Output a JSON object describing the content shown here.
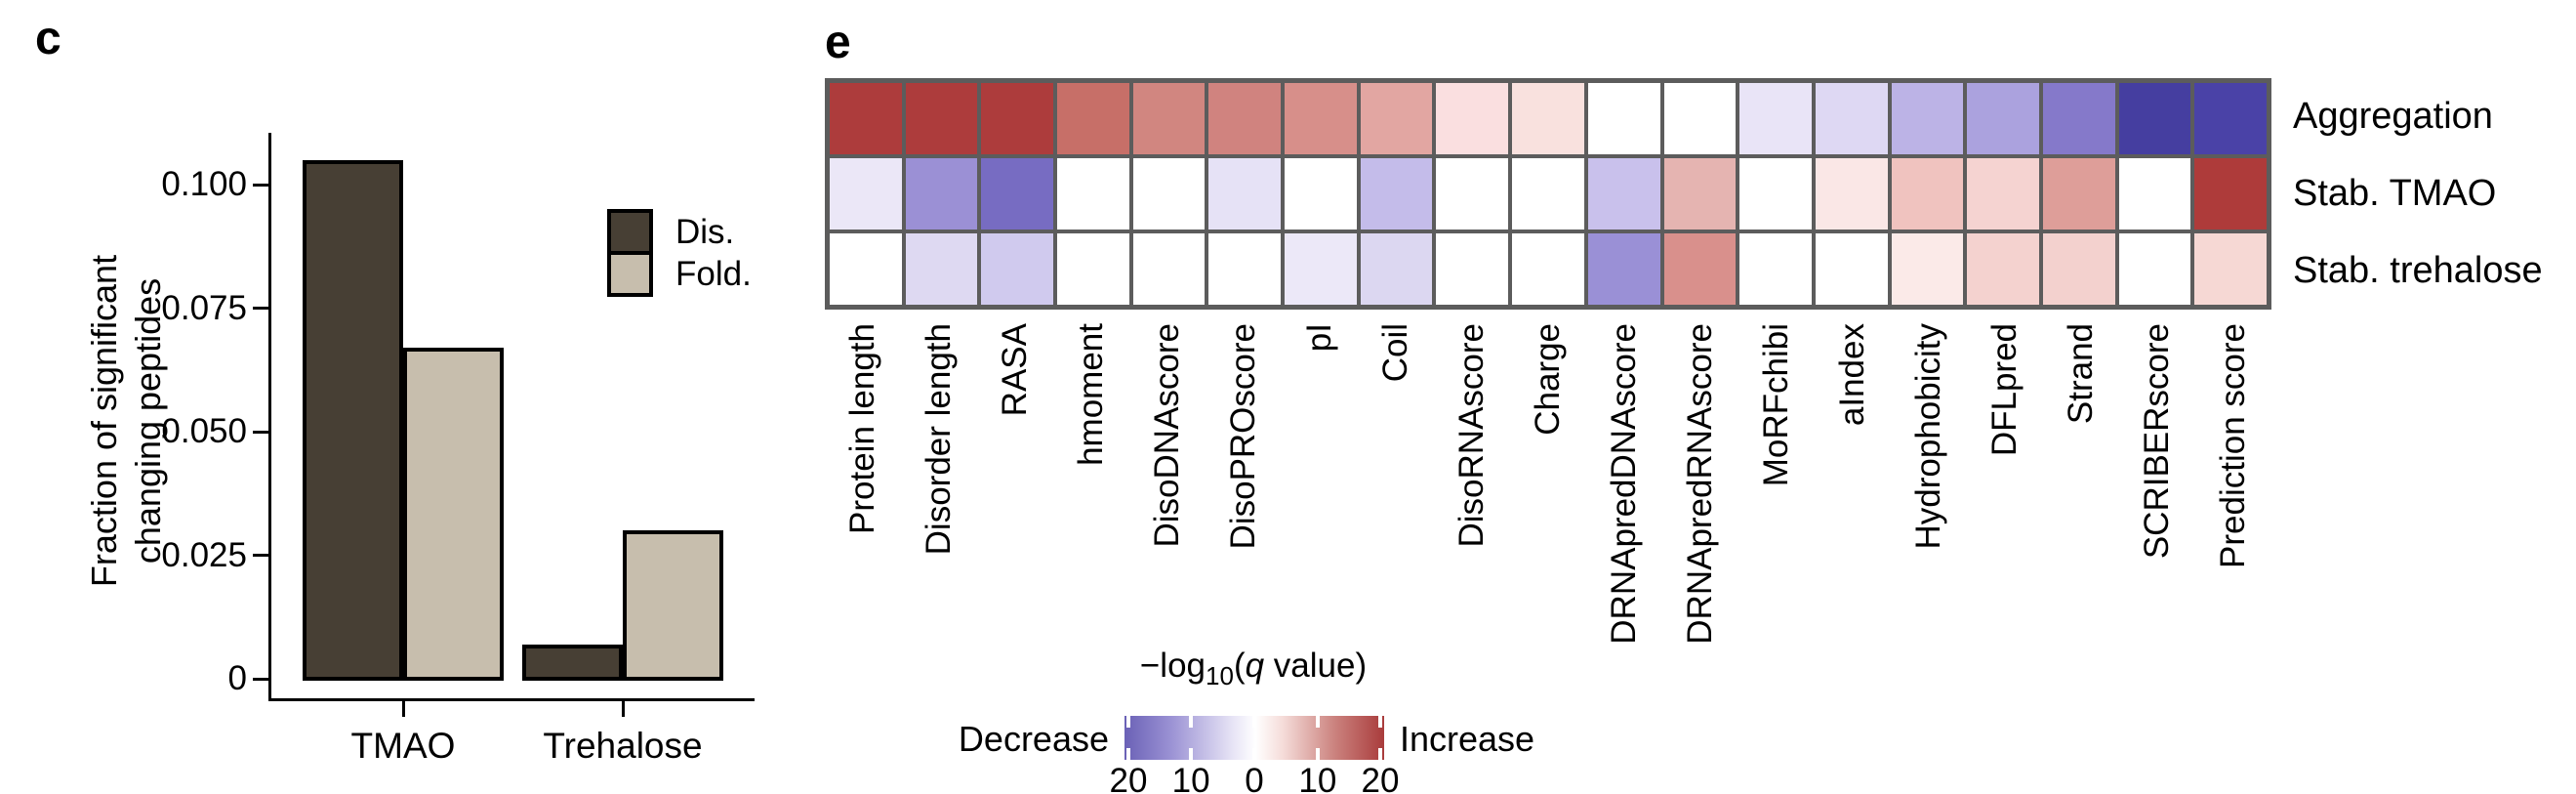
{
  "panels": {
    "c": {
      "label": "c",
      "y_axis": {
        "label_lines": [
          "Fraction of significant",
          "changing peptides"
        ],
        "tick_labels": [
          "0",
          "0.025",
          "0.050",
          "0.075",
          "0.100"
        ]
      }
    },
    "e": {
      "label": "e"
    }
  },
  "chart_data": [
    {
      "type": "bar",
      "title": "",
      "categories": [
        "TMAO",
        "Trehalose"
      ],
      "series": [
        {
          "name": "Dis.",
          "values": [
            0.105,
            0.007
          ],
          "color": "#473f34"
        },
        {
          "name": "Fold.",
          "values": [
            0.067,
            0.03
          ],
          "color": "#c7bead"
        }
      ],
      "xlabel": "",
      "ylabel": "Fraction of significant changing peptides",
      "yticks": [
        0,
        0.025,
        0.05,
        0.075,
        0.1
      ],
      "ylim": [
        0,
        0.115
      ],
      "legend_position": "upper right",
      "grid": false
    },
    {
      "type": "heatmap",
      "columns": [
        "Protein length",
        "Disorder length",
        "RASA",
        "hmoment",
        "DisoDNAscore",
        "DisoPROscore",
        "pI",
        "Coil",
        "DisoRNAscore",
        "Charge",
        "DRNApredDNAscore",
        "DRNApredRNAscore",
        "MoRFchibi",
        "aIndex",
        "Hydrophobicity",
        "DFLpred",
        "Strand",
        "SCRIBERscore",
        "Prediction score"
      ],
      "rows": [
        {
          "name": "Aggregation",
          "values": [
            24,
            24,
            24,
            14,
            12,
            12,
            11,
            8,
            3,
            3,
            0,
            0,
            -2,
            -3,
            -7,
            -8,
            -12,
            -23,
            -22
          ],
          "colors": [
            "#ad3c3c",
            "#ad3c3c",
            "#ad3c3c",
            "#c76f68",
            "#d18680",
            "#d0837f",
            "#d78f8a",
            "#e2a6a2",
            "#fadfe0",
            "#f9e1de",
            "#ffffff",
            "#ffffff",
            "#e9e4f7",
            "#ded8f3",
            "#bcb3e6",
            "#aba2de",
            "#8579ca",
            "#453ea0",
            "#4a42a7"
          ]
        },
        {
          "name": "Stab. TMAO",
          "values": [
            -2,
            -10,
            -14,
            0,
            0,
            -3,
            0,
            -6,
            0,
            0,
            -6,
            7,
            0,
            2,
            6,
            4,
            9,
            0,
            23
          ],
          "colors": [
            "#ebe7f7",
            "#9b90d5",
            "#776cc2",
            "#ffffff",
            "#ffffff",
            "#e6e2f6",
            "#ffffff",
            "#c4bcea",
            "#ffffff",
            "#ffffff",
            "#c9c1ec",
            "#e5b4b1",
            "#ffffff",
            "#fae7e6",
            "#f0c3bf",
            "#f5d3d1",
            "#de9e99",
            "#ffffff",
            "#ae3b3a"
          ]
        },
        {
          "name": "Stab. trehalose",
          "values": [
            0,
            -4,
            -5,
            0,
            0,
            0,
            -2,
            -4,
            0,
            0,
            -10,
            11,
            0,
            0,
            2,
            4,
            4,
            0,
            4
          ],
          "colors": [
            "#ffffff",
            "#ded9f2",
            "#d0caee",
            "#ffffff",
            "#ffffff",
            "#ffffff",
            "#ece8f8",
            "#dcd7f1",
            "#ffffff",
            "#ffffff",
            "#9a90d6",
            "#d9908c",
            "#ffffff",
            "#ffffff",
            "#fbeae8",
            "#f4d2cf",
            "#f3d1ce",
            "#ffffff",
            "#f6d8d4"
          ]
        }
      ],
      "colorbar": {
        "title_prefix": "−log",
        "title_sub": "10",
        "title_open": "(",
        "title_q": "q",
        "title_rest": " value)",
        "ticks": [
          "20",
          "10",
          "0",
          "10",
          "20"
        ],
        "left_label": "Decrease",
        "right_label": "Increase",
        "decrease_color": "#6a61b6",
        "zero_color": "#ffffff",
        "increase_color": "#a93c3c"
      }
    }
  ]
}
